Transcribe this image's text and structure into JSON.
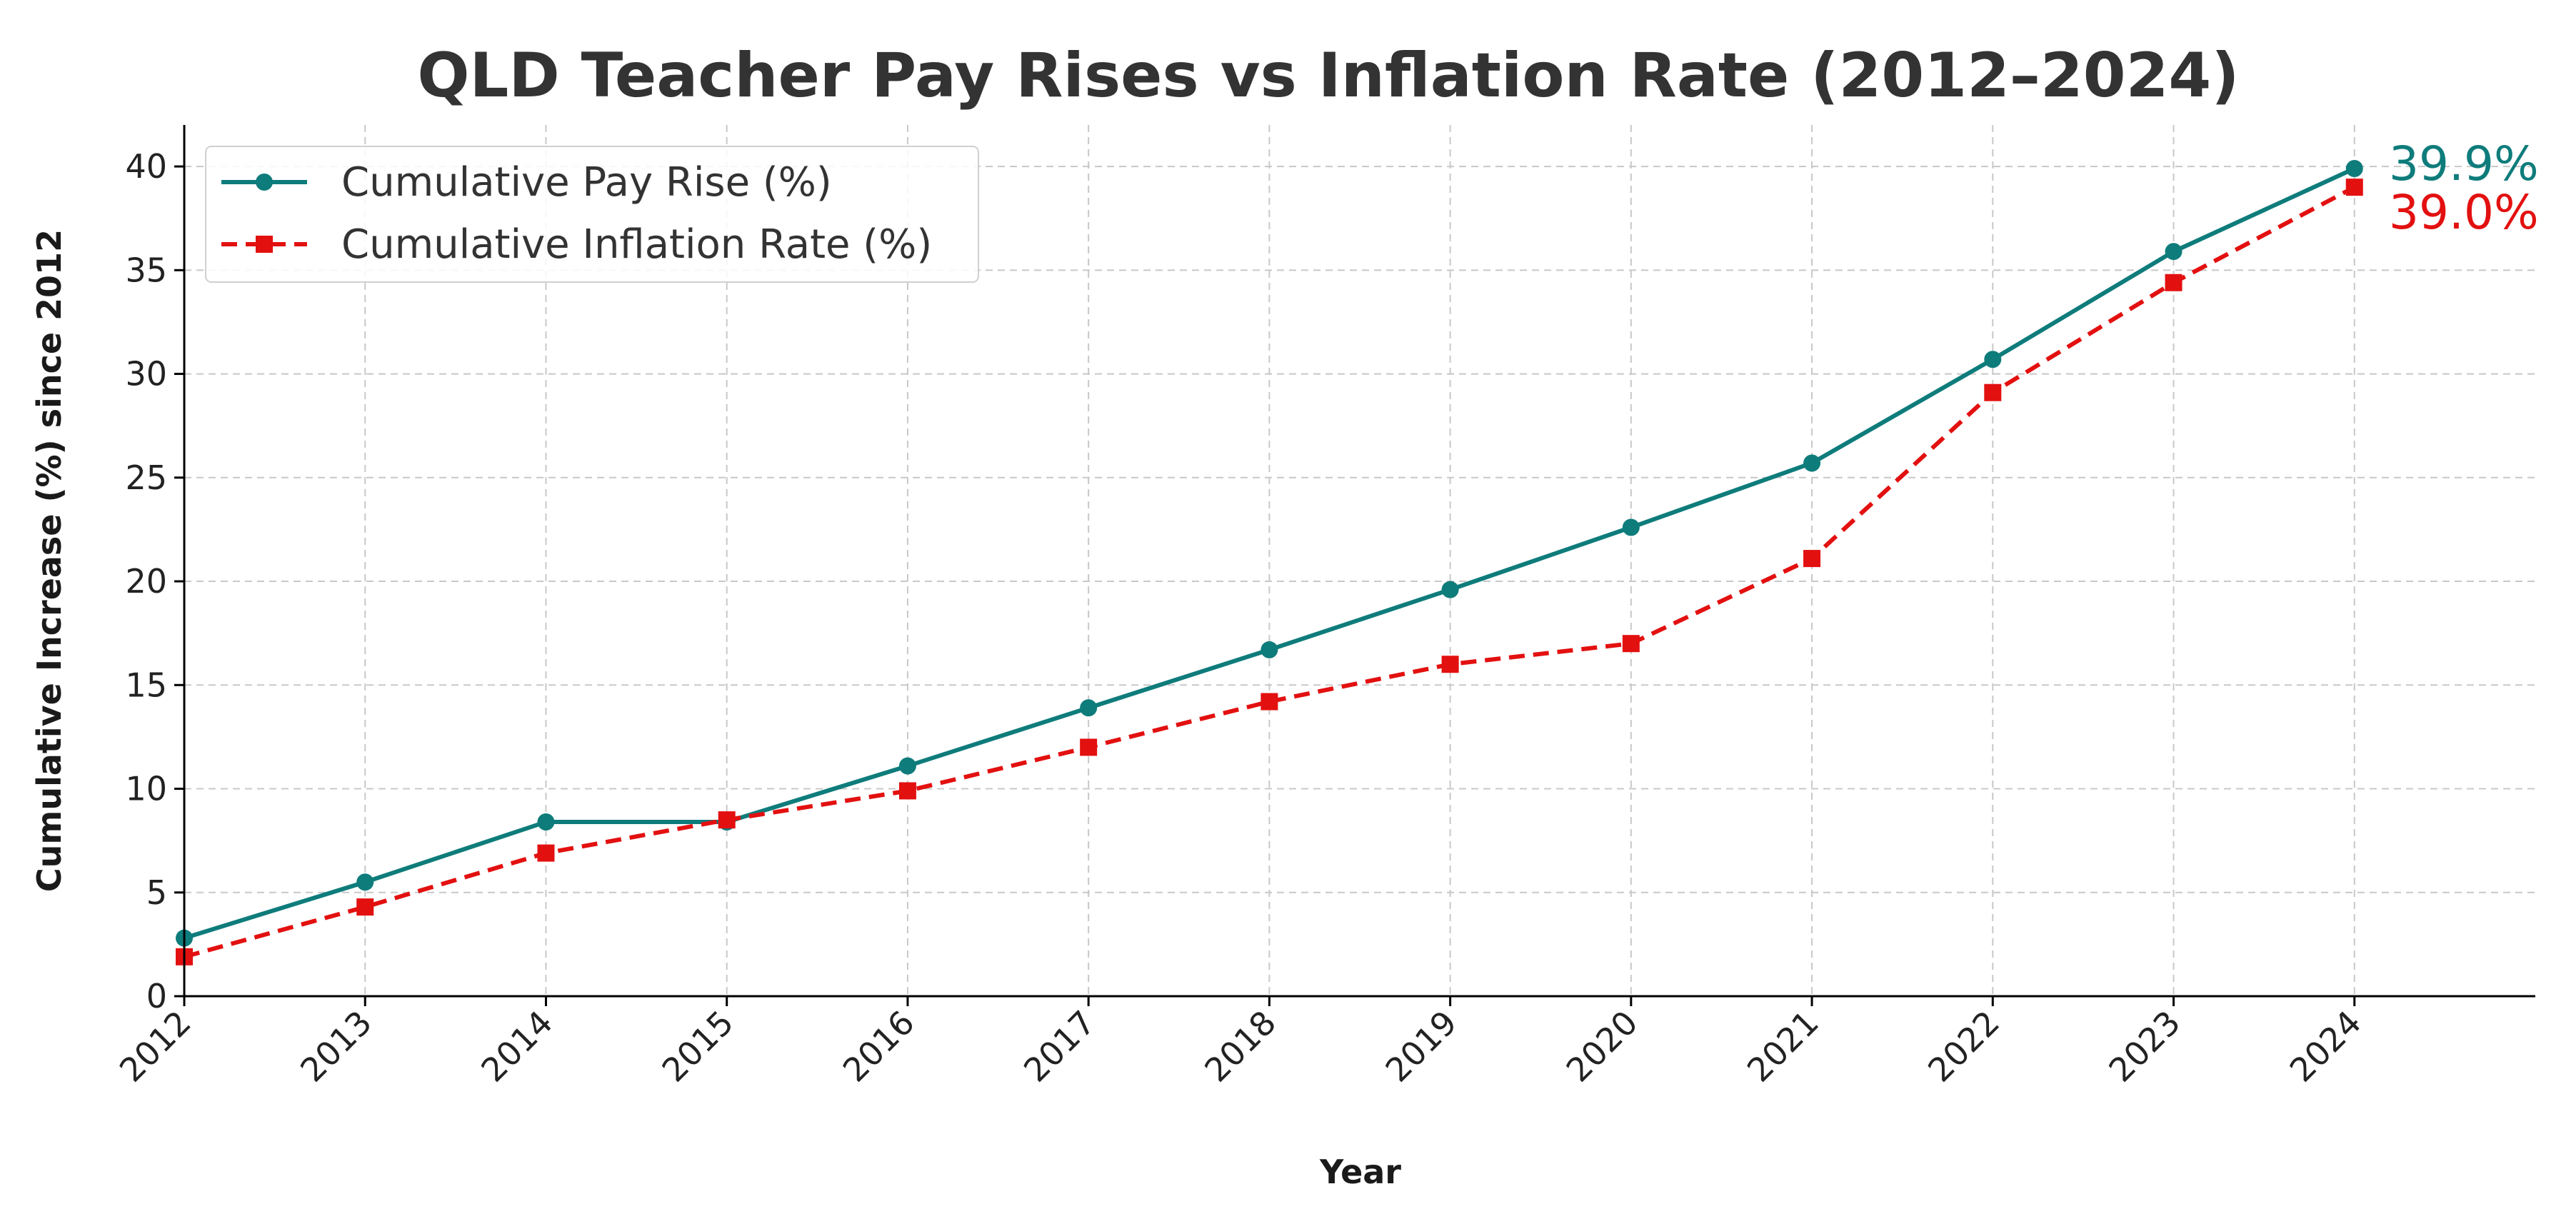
{
  "chart_data": {
    "type": "line",
    "title": "QLD Teacher Pay Rises vs Inflation Rate (2012–2024)",
    "xlabel": "Year",
    "ylabel": "Cumulative Increase (%) since 2012",
    "x": [
      2012,
      2013,
      2014,
      2015,
      2016,
      2017,
      2018,
      2019,
      2020,
      2021,
      2022,
      2023,
      2024
    ],
    "x_tick_labels": [
      "2012",
      "2013",
      "2014",
      "2015",
      "2016",
      "2017",
      "2018",
      "2019",
      "2020",
      "2021",
      "2022",
      "2023",
      "2024"
    ],
    "y_ticks": [
      0,
      5,
      10,
      15,
      20,
      25,
      30,
      35,
      40
    ],
    "y_tick_labels": [
      "0",
      "5",
      "10",
      "15",
      "20",
      "25",
      "30",
      "35",
      "40"
    ],
    "xlim": [
      2012,
      2025
    ],
    "ylim": [
      0,
      42
    ],
    "grid": true,
    "legend_position": "top-left",
    "series": [
      {
        "name": "Cumulative Pay Rise (%)",
        "color": "#0e7c7b",
        "style": "solid",
        "marker": "circle",
        "values": [
          2.8,
          5.5,
          8.4,
          8.4,
          11.1,
          13.9,
          16.7,
          19.6,
          22.6,
          25.7,
          30.7,
          35.9,
          39.9
        ],
        "end_label": "39.9%"
      },
      {
        "name": "Cumulative Inflation Rate (%)",
        "color": "#e31010",
        "style": "dashed",
        "marker": "square",
        "values": [
          1.9,
          4.3,
          6.9,
          8.5,
          9.9,
          12.0,
          14.2,
          16.0,
          17.0,
          21.1,
          29.1,
          34.4,
          39.0
        ],
        "end_label": "39.0%"
      }
    ]
  }
}
